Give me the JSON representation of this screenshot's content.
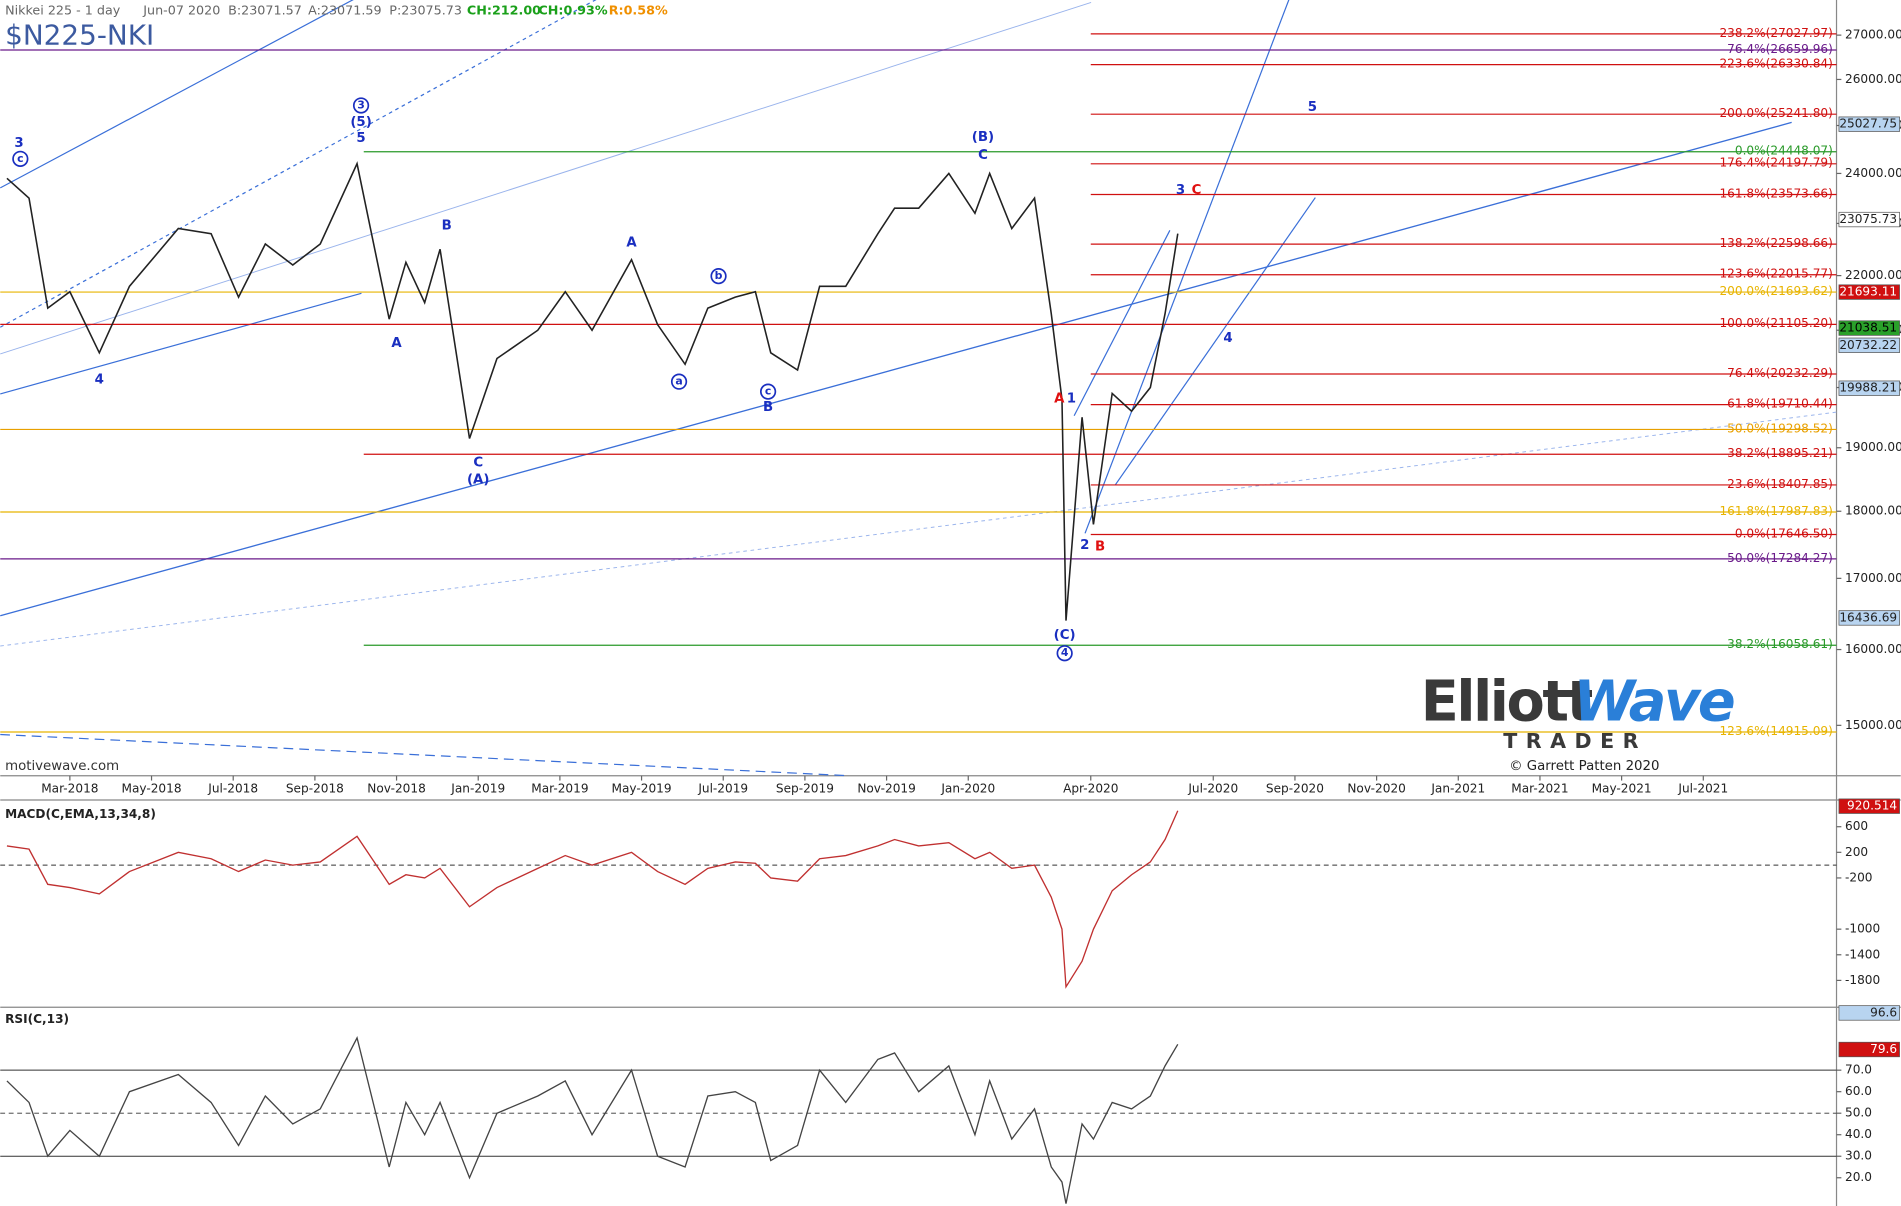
{
  "header": {
    "instrument": "Nikkei 225 - 1 day",
    "date": "Jun-07 2020",
    "bid": "B:23071.57",
    "ask": "A:23071.59",
    "price": "P:23075.73",
    "change": "CH:212.00",
    "change_pct": "CH:0.93%",
    "range": "R:0.58%",
    "symbol": "$N225-NKI"
  },
  "chart_data": [
    {
      "type": "line",
      "log_scale": true,
      "color": "#222222",
      "x": [
        "2018-01-15",
        "2018-02-01",
        "2018-02-15",
        "2018-03-01",
        "2018-03-23",
        "2018-04-15",
        "2018-05-21",
        "2018-06-15",
        "2018-07-05",
        "2018-07-25",
        "2018-08-15",
        "2018-09-05",
        "2018-10-02",
        "2018-10-26",
        "2018-11-08",
        "2018-11-22",
        "2018-12-03",
        "2018-12-25",
        "2019-01-15",
        "2019-02-15",
        "2019-03-05",
        "2019-03-25",
        "2019-04-24",
        "2019-05-13",
        "2019-06-03",
        "2019-06-20",
        "2019-07-10",
        "2019-07-25",
        "2019-08-06",
        "2019-08-26",
        "2019-09-12",
        "2019-10-01",
        "2019-10-25",
        "2019-11-07",
        "2019-11-25",
        "2019-12-17",
        "2020-01-06",
        "2020-01-17",
        "2020-02-03",
        "2020-02-20",
        "2020-03-02",
        "2020-03-10",
        "2020-03-13",
        "2020-03-25",
        "2020-04-03",
        "2020-04-17",
        "2020-05-01",
        "2020-05-15",
        "2020-05-26",
        "2020-06-05"
      ],
      "values": [
        23900,
        23500,
        21400,
        21700,
        20600,
        21800,
        22900,
        22800,
        21600,
        22600,
        22200,
        22600,
        24200,
        21200,
        22250,
        21500,
        22500,
        19150,
        20500,
        21000,
        21700,
        21000,
        22300,
        21100,
        20400,
        21400,
        21600,
        21700,
        20600,
        20300,
        21800,
        21800,
        22800,
        23300,
        23300,
        24000,
        23200,
        24000,
        22900,
        23500,
        21300,
        19800,
        16400,
        19500,
        17800,
        19900,
        19600,
        20000,
        21300,
        22800
      ],
      "xlim": [
        "2018-01-10",
        "2021-10-09"
      ],
      "xticks": [
        {
          "value": "2018-03-01",
          "label": "Mar-2018"
        },
        {
          "value": "2018-05-01",
          "label": "May-2018"
        },
        {
          "value": "2018-07-01",
          "label": "Jul-2018"
        },
        {
          "value": "2018-09-01",
          "label": "Sep-2018"
        },
        {
          "value": "2018-11-01",
          "label": "Nov-2018"
        },
        {
          "value": "2019-01-01",
          "label": "Jan-2019"
        },
        {
          "value": "2019-03-01",
          "label": "Mar-2019"
        },
        {
          "value": "2019-05-01",
          "label": "May-2019"
        },
        {
          "value": "2019-07-01",
          "label": "Jul-2019"
        },
        {
          "value": "2019-09-01",
          "label": "Sep-2019"
        },
        {
          "value": "2019-11-01",
          "label": "Nov-2019"
        },
        {
          "value": "2020-01-01",
          "label": "Jan-2020"
        },
        {
          "value": "2020-04-01",
          "label": "Apr-2020"
        },
        {
          "value": "2020-07-01",
          "label": "Jul-2020"
        },
        {
          "value": "2020-09-01",
          "label": "Sep-2020"
        },
        {
          "value": "2020-11-01",
          "label": "Nov-2020"
        },
        {
          "value": "2021-01-01",
          "label": "Jan-2021"
        },
        {
          "value": "2021-03-01",
          "label": "Mar-2021"
        },
        {
          "value": "2021-05-01",
          "label": "May-2021"
        },
        {
          "value": "2021-07-01",
          "label": "Jul-2021"
        }
      ],
      "ylim": [
        14370,
        27820
      ],
      "yticks": [
        {
          "value": 15000,
          "label": "15000.00"
        },
        {
          "value": 16000,
          "label": "16000.00"
        },
        {
          "value": 17000,
          "label": "17000.00"
        },
        {
          "value": 18000,
          "label": "18000.00"
        },
        {
          "value": 19000,
          "label": "19000.00"
        },
        {
          "value": 20000,
          "label": "20000.00"
        },
        {
          "value": 21000,
          "label": "21000.00"
        },
        {
          "value": 22000,
          "label": "22000.00"
        },
        {
          "value": 23000,
          "label": "23000.00"
        },
        {
          "value": 24000,
          "label": "24000.00"
        },
        {
          "value": 25000,
          "label": "25000.00"
        },
        {
          "value": 26000,
          "label": "26000.00"
        },
        {
          "value": 27000,
          "label": "27000.00"
        }
      ],
      "levels": [
        {
          "label": "238.2%(27027.97)",
          "value": 27027.97,
          "color": "#d01010",
          "from": "2020-04-01"
        },
        {
          "label": "76.4%(26659.96)",
          "value": 26659.96,
          "color": "#6a1a8a"
        },
        {
          "label": "223.6%(26330.84)",
          "value": 26330.84,
          "color": "#d01010",
          "from": "2020-04-01"
        },
        {
          "label": "200.0%(25241.80)",
          "value": 25241.8,
          "color": "#d01010",
          "from": "2020-04-01"
        },
        {
          "label": "0.0%(24448.07)",
          "value": 24448.07,
          "color": "#2a9a2a",
          "from": "2018-10-07"
        },
        {
          "label": "176.4%(24197.79)",
          "value": 24197.79,
          "color": "#d01010",
          "from": "2020-04-01"
        },
        {
          "label": "161.8%(23573.66)",
          "value": 23573.66,
          "color": "#d01010",
          "from": "2020-04-01"
        },
        {
          "label": "138.2%(22598.66)",
          "value": 22598.66,
          "color": "#d01010",
          "from": "2020-04-01"
        },
        {
          "label": "123.6%(22015.77)",
          "value": 22015.77,
          "color": "#d01010",
          "from": "2020-04-01"
        },
        {
          "label": "200.0%(21693.62)",
          "value": 21693.62,
          "color": "#e8b400"
        },
        {
          "label": "100.0%(21105.20)",
          "value": 21105.2,
          "color": "#d01010"
        },
        {
          "label": "76.4%(20232.29)",
          "value": 20232.29,
          "color": "#d01010",
          "from": "2020-04-01"
        },
        {
          "label": "61.8%(19710.44)",
          "value": 19710.44,
          "color": "#d01010",
          "from": "2020-04-01"
        },
        {
          "label": "50.0%(19298.52)",
          "value": 19298.52,
          "color": "#e8a000"
        },
        {
          "label": "38.2%(18895.21)",
          "value": 18895.21,
          "color": "#d01010",
          "from": "2018-10-07"
        },
        {
          "label": "23.6%(18407.85)",
          "value": 18407.85,
          "color": "#d01010",
          "from": "2020-04-01"
        },
        {
          "label": "161.8%(17987.83)",
          "value": 17987.83,
          "color": "#e8b400"
        },
        {
          "label": "0.0%(17646.50)",
          "value": 17646.5,
          "color": "#d01010",
          "from": "2020-04-01"
        },
        {
          "label": "50.0%(17284.27)",
          "value": 17284.27,
          "color": "#6a1a8a"
        },
        {
          "label": "38.2%(16058.61)",
          "value": 16058.61,
          "color": "#2a9a2a",
          "from": "2018-10-07"
        },
        {
          "label": "123.6%(14915.09)",
          "value": 14915.09,
          "color": "#e8b400"
        }
      ],
      "price_tags": [
        {
          "value": 25027.75,
          "color": "#b8d4f0",
          "text_color": "#222222"
        },
        {
          "value": 23075.73,
          "color": "#ffffff",
          "text_color": "#222222"
        },
        {
          "value": 21693.11,
          "color": "#d01010",
          "text_color": "#ffffff"
        },
        {
          "value": 21038.51,
          "color": "#2aa02a",
          "text_color": "#000000"
        },
        {
          "value": 20732.22,
          "color": "#b8d4f0",
          "text_color": "#222222"
        },
        {
          "value": 19988.21,
          "color": "#b8d4f0",
          "text_color": "#222222"
        },
        {
          "value": 16436.69,
          "color": "#b8d4f0",
          "text_color": "#222222"
        }
      ],
      "annotations": [
        {
          "text": "3",
          "x": "2018-01-24",
          "y": 24630,
          "color": "#1a2fc0"
        },
        {
          "text": "c",
          "x": "2018-01-25",
          "y": 24300,
          "color": "#1a2fc0",
          "circled": true
        },
        {
          "text": "4",
          "x": "2018-03-23",
          "y": 20140,
          "color": "#1a2fc0"
        },
        {
          "text": "3",
          "x": "2018-10-05",
          "y": 25430,
          "color": "#1a2fc0",
          "circled": true
        },
        {
          "text": "(5)",
          "x": "2018-10-05",
          "y": 25070,
          "color": "#1a2fc0"
        },
        {
          "text": "5",
          "x": "2018-10-05",
          "y": 24730,
          "color": "#1a2fc0"
        },
        {
          "text": "B",
          "x": "2018-12-08",
          "y": 22960,
          "color": "#1a2fc0"
        },
        {
          "text": "A",
          "x": "2018-11-01",
          "y": 20770,
          "color": "#1a2fc0"
        },
        {
          "text": "C",
          "x": "2019-01-01",
          "y": 18760,
          "color": "#1a2fc0"
        },
        {
          "text": "(A)",
          "x": "2019-01-01",
          "y": 18490,
          "color": "#1a2fc0"
        },
        {
          "text": "A",
          "x": "2019-04-24",
          "y": 22630,
          "color": "#1a2fc0"
        },
        {
          "text": "b",
          "x": "2019-06-28",
          "y": 21990,
          "color": "#1a2fc0",
          "circled": true
        },
        {
          "text": "a",
          "x": "2019-05-29",
          "y": 20100,
          "color": "#1a2fc0",
          "circled": true
        },
        {
          "text": "c",
          "x": "2019-08-04",
          "y": 19930,
          "color": "#1a2fc0",
          "circled": true
        },
        {
          "text": "B",
          "x": "2019-08-04",
          "y": 19670,
          "color": "#1a2fc0"
        },
        {
          "text": "(B)",
          "x": "2020-01-12",
          "y": 24760,
          "color": "#1a2fc0"
        },
        {
          "text": "C",
          "x": "2020-01-12",
          "y": 24380,
          "color": "#1a2fc0"
        },
        {
          "text": "A",
          "x": "2020-03-08",
          "y": 19810,
          "color": "#e01010"
        },
        {
          "text": "1",
          "x": "2020-03-17",
          "y": 19810,
          "color": "#1a2fc0"
        },
        {
          "text": "2",
          "x": "2020-03-27",
          "y": 17490,
          "color": "#1a2fc0"
        },
        {
          "text": "B",
          "x": "2020-04-08",
          "y": 17470,
          "color": "#e01010"
        },
        {
          "text": "(C)",
          "x": "2020-03-12",
          "y": 16200,
          "color": "#1a2fc0"
        },
        {
          "text": "4",
          "x": "2020-03-12",
          "y": 15950,
          "color": "#1a2fc0",
          "circled": true
        },
        {
          "text": "3",
          "x": "2020-06-07",
          "y": 23660,
          "color": "#1a2fc0"
        },
        {
          "text": "C",
          "x": "2020-06-19",
          "y": 23660,
          "color": "#e01010"
        },
        {
          "text": "5",
          "x": "2020-09-14",
          "y": 25400,
          "color": "#1a2fc0"
        },
        {
          "text": "4",
          "x": "2020-07-12",
          "y": 20860,
          "color": "#1a2fc0"
        }
      ]
    },
    {
      "type": "line",
      "title": "MACD(C,EMA,13,34,8)",
      "color": "#c03030",
      "x": [
        "2018-01-15",
        "2018-02-01",
        "2018-02-15",
        "2018-03-01",
        "2018-03-23",
        "2018-04-15",
        "2018-05-21",
        "2018-06-15",
        "2018-07-05",
        "2018-07-25",
        "2018-08-15",
        "2018-09-05",
        "2018-10-02",
        "2018-10-26",
        "2018-11-08",
        "2018-11-22",
        "2018-12-03",
        "2018-12-25",
        "2019-01-15",
        "2019-02-15",
        "2019-03-05",
        "2019-03-25",
        "2019-04-24",
        "2019-05-13",
        "2019-06-03",
        "2019-06-20",
        "2019-07-10",
        "2019-07-25",
        "2019-08-06",
        "2019-08-26",
        "2019-09-12",
        "2019-10-01",
        "2019-10-25",
        "2019-11-07",
        "2019-11-25",
        "2019-12-17",
        "2020-01-06",
        "2020-01-17",
        "2020-02-03",
        "2020-02-20",
        "2020-03-02",
        "2020-03-10",
        "2020-03-13",
        "2020-03-25",
        "2020-04-03",
        "2020-04-17",
        "2020-05-01",
        "2020-05-15",
        "2020-05-26",
        "2020-06-05"
      ],
      "values": [
        300,
        250,
        -300,
        -350,
        -450,
        -100,
        200,
        100,
        -100,
        80,
        0,
        50,
        450,
        -300,
        -150,
        -200,
        -50,
        -650,
        -350,
        -50,
        150,
        0,
        200,
        -100,
        -300,
        -50,
        50,
        30,
        -200,
        -250,
        100,
        150,
        300,
        400,
        300,
        350,
        100,
        200,
        -50,
        0,
        -500,
        -1000,
        -1900,
        -1500,
        -1000,
        -400,
        -150,
        50,
        400,
        850
      ],
      "xlim": [
        "2018-01-10",
        "2021-10-09"
      ],
      "ylim": [
        -2200,
        980
      ],
      "yticks": [
        600,
        200,
        -200,
        -1000,
        -1400,
        -1800
      ],
      "price_tags": [
        {
          "value": 920.514,
          "color": "#d01010",
          "text_color": "#ffffff"
        }
      ]
    },
    {
      "type": "line",
      "title": "RSI(C,13)",
      "color": "#444444",
      "x": [
        "2018-01-15",
        "2018-02-01",
        "2018-02-15",
        "2018-03-01",
        "2018-03-23",
        "2018-04-15",
        "2018-05-21",
        "2018-06-15",
        "2018-07-05",
        "2018-07-25",
        "2018-08-15",
        "2018-09-05",
        "2018-10-02",
        "2018-10-26",
        "2018-11-08",
        "2018-11-22",
        "2018-12-03",
        "2018-12-25",
        "2019-01-15",
        "2019-02-15",
        "2019-03-05",
        "2019-03-25",
        "2019-04-24",
        "2019-05-13",
        "2019-06-03",
        "2019-06-20",
        "2019-07-10",
        "2019-07-25",
        "2019-08-06",
        "2019-08-26",
        "2019-09-12",
        "2019-10-01",
        "2019-10-25",
        "2019-11-07",
        "2019-11-25",
        "2019-12-17",
        "2020-01-06",
        "2020-01-17",
        "2020-02-03",
        "2020-02-20",
        "2020-03-02",
        "2020-03-10",
        "2020-03-13",
        "2020-03-25",
        "2020-04-03",
        "2020-04-17",
        "2020-05-01",
        "2020-05-15",
        "2020-05-26",
        "2020-06-05"
      ],
      "values": [
        65,
        55,
        30,
        42,
        30,
        60,
        68,
        55,
        35,
        58,
        45,
        52,
        85,
        25,
        55,
        40,
        55,
        20,
        50,
        58,
        65,
        40,
        70,
        30,
        25,
        58,
        60,
        55,
        28,
        35,
        70,
        55,
        75,
        78,
        60,
        72,
        40,
        65,
        38,
        52,
        25,
        18,
        8,
        45,
        38,
        55,
        52,
        58,
        72,
        82
      ],
      "xlim": [
        "2018-01-10",
        "2021-10-09"
      ],
      "ylim": [
        8,
        97
      ],
      "yticks": [
        {
          "value": 70,
          "label": "70.0"
        },
        {
          "value": 60,
          "label": "60.0"
        },
        {
          "value": 50,
          "label": "50.0"
        },
        {
          "value": 40,
          "label": "40.0"
        },
        {
          "value": 30,
          "label": "30.0"
        },
        {
          "value": 20,
          "label": "20.0"
        }
      ],
      "reference_lines": [
        70,
        50,
        30
      ],
      "price_tags": [
        {
          "value": 96.6,
          "color": "#b8d4f0",
          "text_color": "#222222"
        },
        {
          "value": 79.6,
          "color": "#d01010",
          "text_color": "#ffffff"
        }
      ]
    }
  ],
  "footer": {
    "watermark": "motivewave.com",
    "logo_a": "Elliott",
    "logo_b": "Wave",
    "logo_sub": "TRADER",
    "copyright": "© Garrett Patten 2020"
  }
}
